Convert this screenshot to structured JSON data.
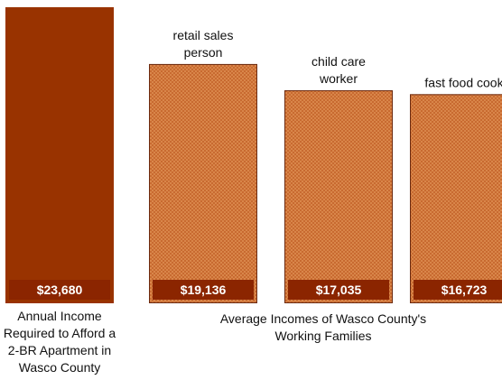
{
  "chart_data": {
    "type": "bar",
    "categories": [
      "Annual Income Required to Afford a 2-BR Apartment in Wasco County",
      "retail sales person",
      "child care worker",
      "fast food cook"
    ],
    "values": [
      23680,
      19136,
      17035,
      16723
    ],
    "value_labels": [
      "$23,680",
      "$19,136",
      "$17,035",
      "$16,723"
    ],
    "category_label_lines": [
      [
        "Annual Income",
        "Required to Afford a",
        "2-BR Apartment in",
        "Wasco County"
      ],
      [
        "retail sales",
        "person"
      ],
      [
        "child care",
        "worker"
      ],
      [
        "fast food cook"
      ]
    ],
    "group_label_lines": [
      "Average Incomes of Wasco County's",
      "Working Families"
    ],
    "ylim": [
      0,
      23680
    ],
    "grid": false,
    "legend": "none",
    "colors": {
      "required_income_bar": "#993300",
      "family_income_bar": "#D9864A",
      "family_income_pattern": "#C86A30",
      "value_label_bg": "#8B2500",
      "value_label_text": "#FFFFFF"
    }
  }
}
